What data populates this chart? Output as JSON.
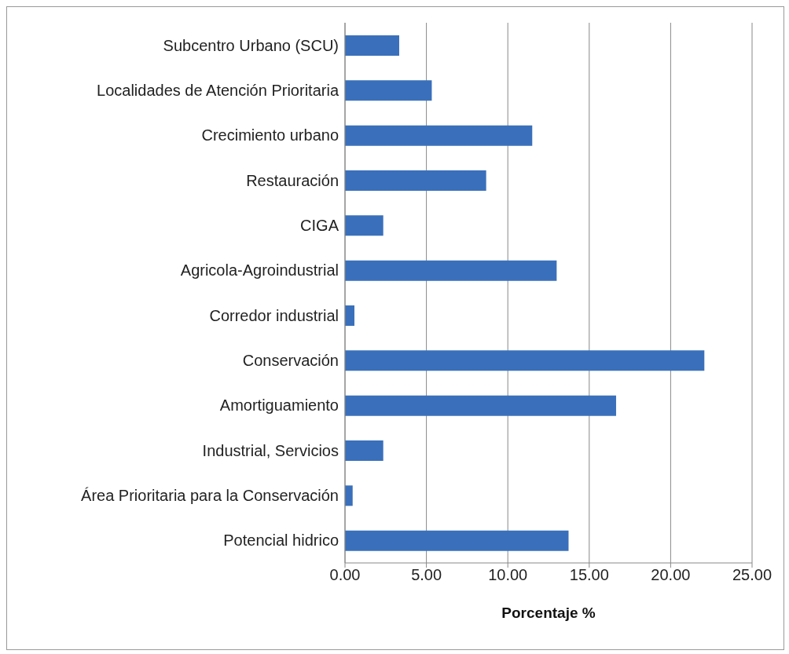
{
  "chart_data": {
    "type": "bar",
    "orientation": "horizontal",
    "xlabel": "Porcentaje %",
    "categories": [
      "Subcentro Urbano (SCU)",
      "Localidades de Atención Prioritaria",
      "Crecimiento urbano",
      "Restauración",
      "CIGA",
      "Agricola-Agroindustrial",
      "Corredor industrial",
      "Conservación",
      "Amortiguamiento",
      "Industrial, Servicios",
      "Área Prioritaria para la Conservación",
      "Potencial hidrico"
    ],
    "values": [
      3.33,
      5.33,
      11.5,
      8.67,
      2.35,
      13.0,
      0.58,
      22.07,
      16.65,
      2.35,
      0.47,
      13.73
    ],
    "color": "#3a70bb",
    "xlim": [
      0,
      25
    ],
    "xticks": [
      {
        "value": 0,
        "label": "0.00"
      },
      {
        "value": 5,
        "label": "5.00"
      },
      {
        "value": 10,
        "label": "10.00"
      },
      {
        "value": 15,
        "label": "15.00"
      },
      {
        "value": 20,
        "label": "20.00"
      },
      {
        "value": 25,
        "label": "25.00"
      }
    ],
    "grid": "x",
    "legend": false
  }
}
